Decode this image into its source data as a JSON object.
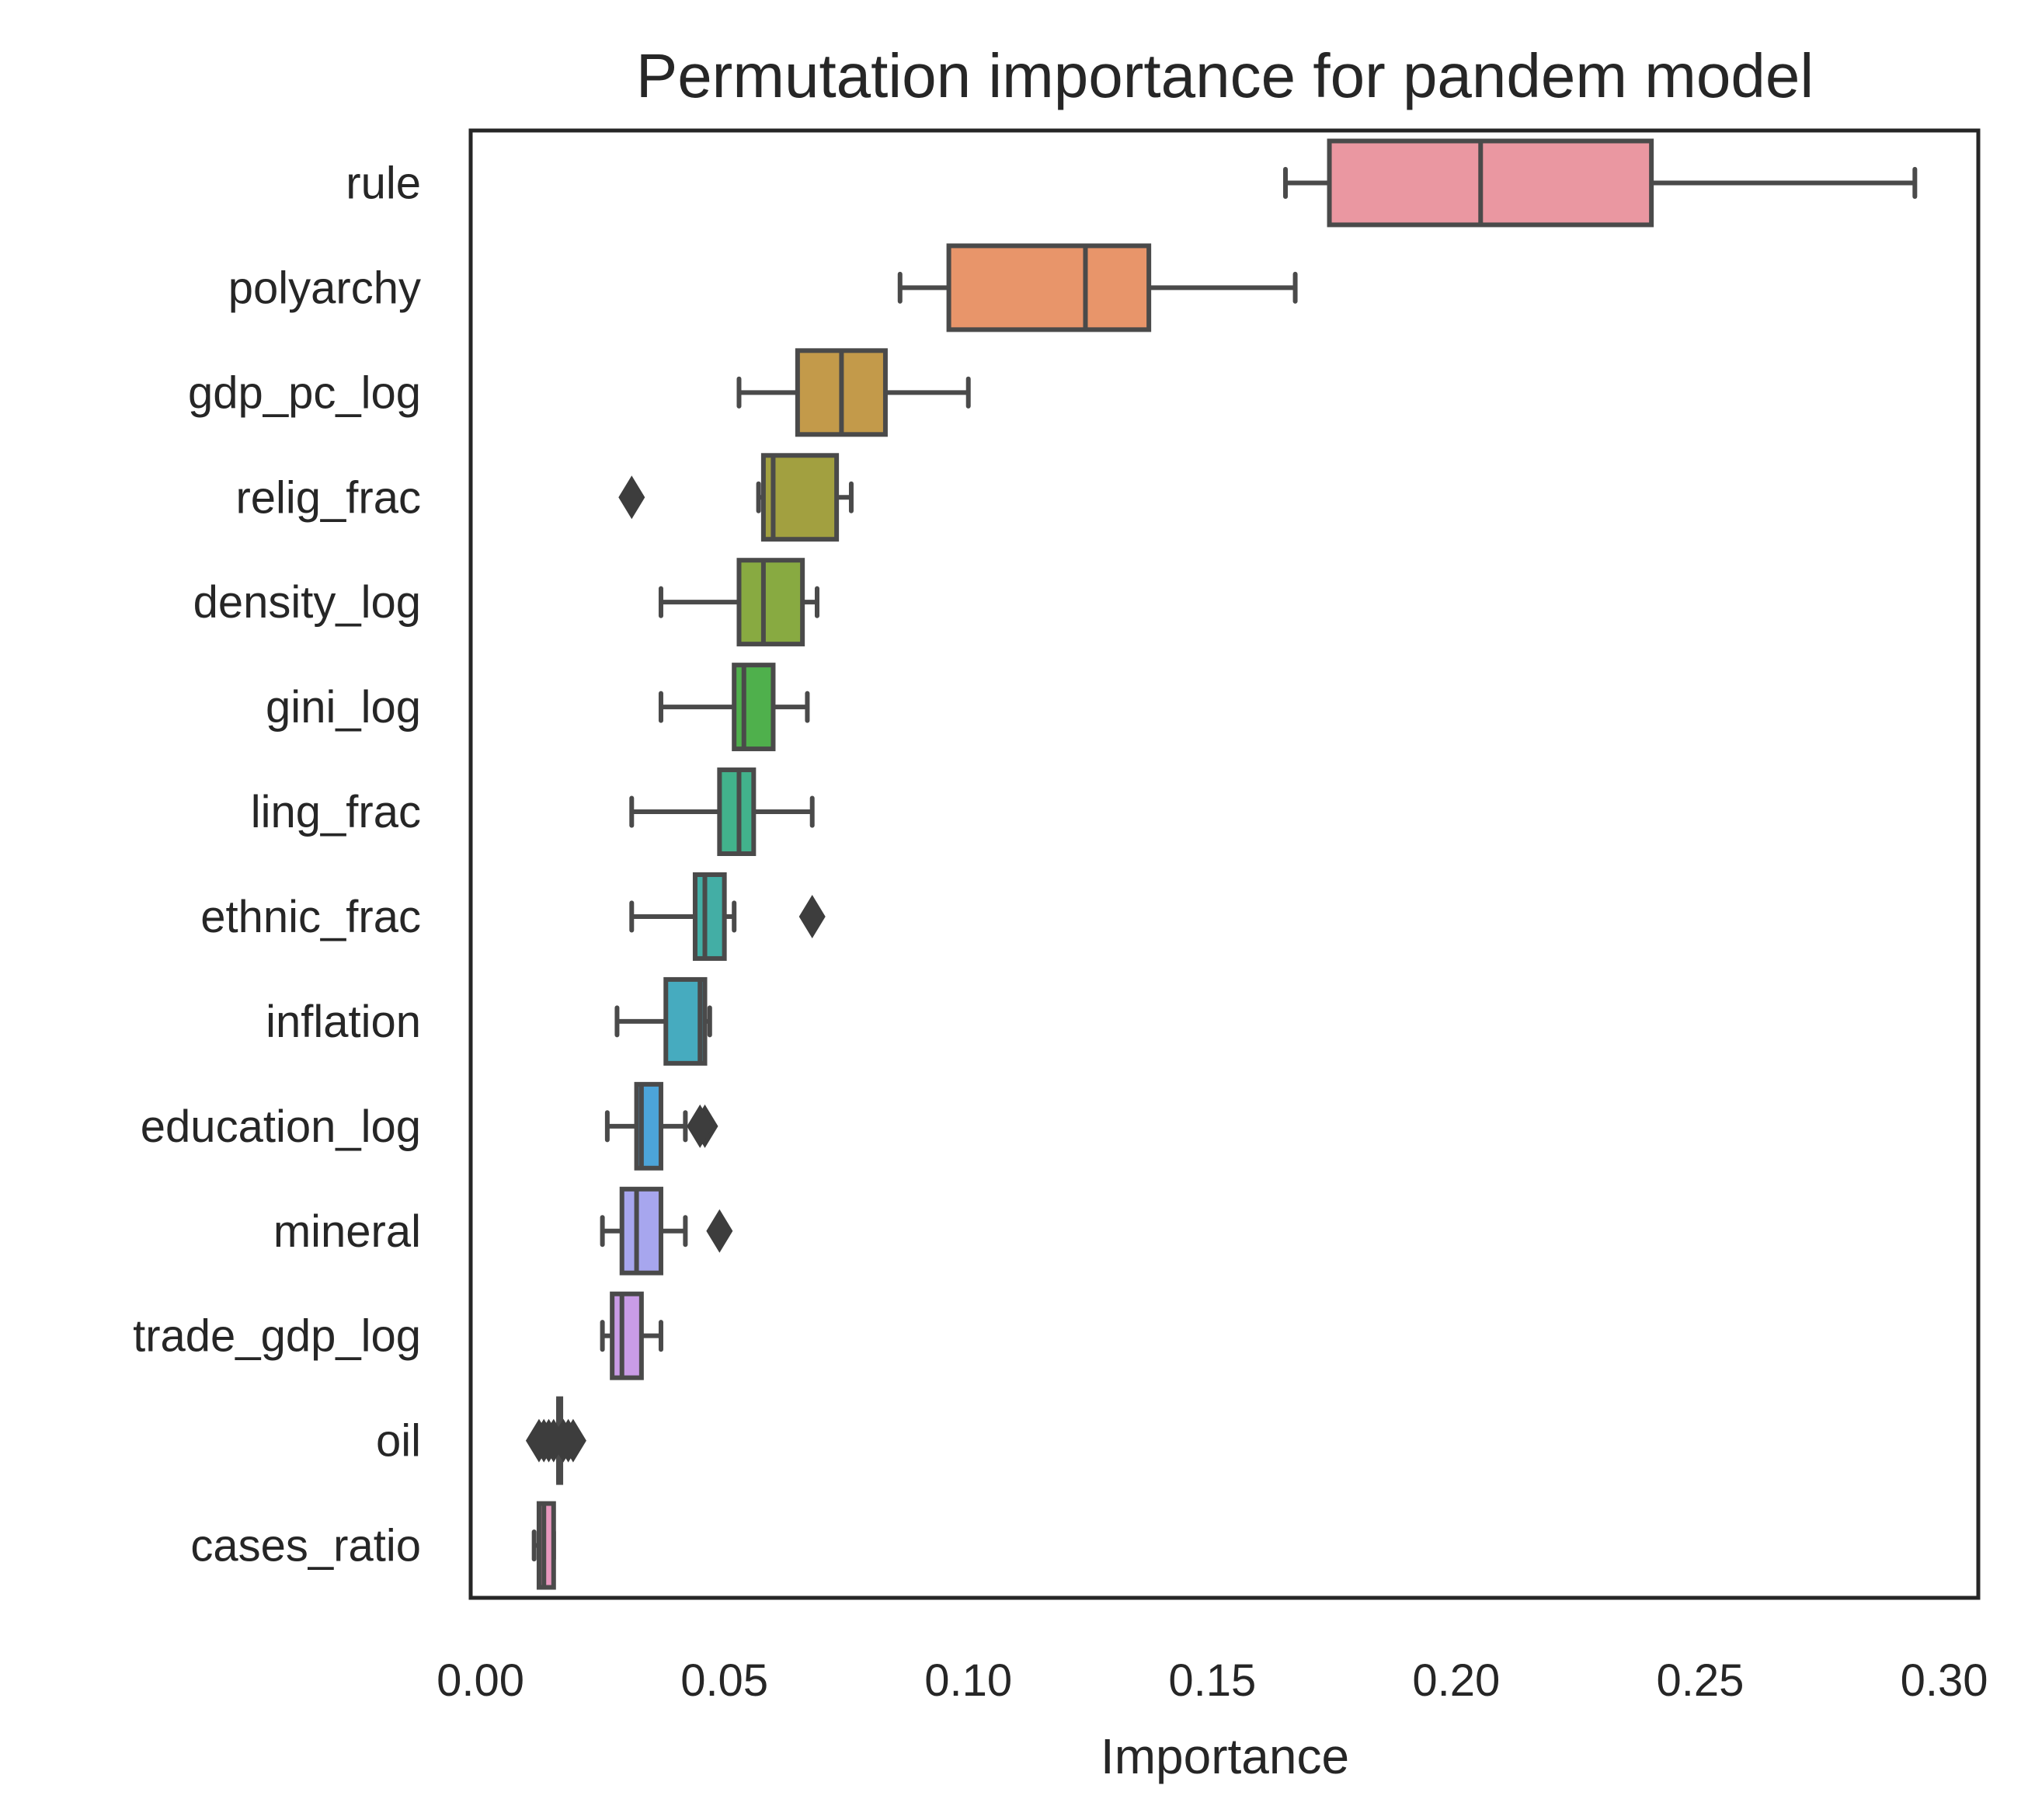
{
  "chart_data": {
    "type": "boxplot",
    "orientation": "horizontal",
    "title": "Permutation importance for pandem model",
    "xlabel": "Importance",
    "ylabel": "",
    "xlim": [
      -0.002,
      0.307
    ],
    "xticks": [
      0.0,
      0.05,
      0.1,
      0.15,
      0.2,
      0.25,
      0.3
    ],
    "xtick_labels": [
      "0.00",
      "0.05",
      "0.10",
      "0.15",
      "0.20",
      "0.25",
      "0.30"
    ],
    "grid": false,
    "legend": "none",
    "series": [
      {
        "name": "rule",
        "color": "#EA97A1",
        "min": 0.165,
        "q1": 0.174,
        "median": 0.205,
        "q3": 0.24,
        "max": 0.294,
        "outliers": []
      },
      {
        "name": "polyarchy",
        "color": "#E8956A",
        "min": 0.086,
        "q1": 0.096,
        "median": 0.124,
        "q3": 0.137,
        "max": 0.167,
        "outliers": []
      },
      {
        "name": "gdp_pc_log",
        "color": "#C39A4A",
        "min": 0.053,
        "q1": 0.065,
        "median": 0.074,
        "q3": 0.083,
        "max": 0.1,
        "outliers": []
      },
      {
        "name": "relig_frac",
        "color": "#A2A040",
        "min": 0.057,
        "q1": 0.058,
        "median": 0.06,
        "q3": 0.073,
        "max": 0.076,
        "outliers": [
          0.031
        ]
      },
      {
        "name": "density_log",
        "color": "#88AA41",
        "min": 0.037,
        "q1": 0.053,
        "median": 0.058,
        "q3": 0.066,
        "max": 0.069,
        "outliers": []
      },
      {
        "name": "gini_log",
        "color": "#4FB04C",
        "min": 0.037,
        "q1": 0.052,
        "median": 0.054,
        "q3": 0.06,
        "max": 0.067,
        "outliers": []
      },
      {
        "name": "ling_frac",
        "color": "#42B28C",
        "min": 0.031,
        "q1": 0.049,
        "median": 0.053,
        "q3": 0.056,
        "max": 0.068,
        "outliers": []
      },
      {
        "name": "ethnic_frac",
        "color": "#43AEA5",
        "min": 0.031,
        "q1": 0.044,
        "median": 0.046,
        "q3": 0.05,
        "max": 0.052,
        "outliers": [
          0.068
        ]
      },
      {
        "name": "inflation",
        "color": "#46ABBF",
        "min": 0.028,
        "q1": 0.038,
        "median": 0.045,
        "q3": 0.046,
        "max": 0.047,
        "outliers": []
      },
      {
        "name": "education_log",
        "color": "#4CA4D9",
        "min": 0.026,
        "q1": 0.032,
        "median": 0.033,
        "q3": 0.037,
        "max": 0.042,
        "outliers": [
          0.046,
          0.045
        ]
      },
      {
        "name": "mineral",
        "color": "#A7A6EE",
        "min": 0.025,
        "q1": 0.029,
        "median": 0.032,
        "q3": 0.037,
        "max": 0.042,
        "outliers": [
          0.049
        ]
      },
      {
        "name": "trade_gdp_log",
        "color": "#C99CE6",
        "min": 0.025,
        "q1": 0.027,
        "median": 0.029,
        "q3": 0.033,
        "max": 0.037,
        "outliers": []
      },
      {
        "name": "oil",
        "color": "#E08ED3",
        "min": 0.016,
        "q1": 0.016,
        "median": 0.016,
        "q3": 0.016,
        "max": 0.016,
        "outliers": [
          0.012,
          0.013,
          0.014,
          0.015,
          0.017,
          0.018,
          0.019
        ]
      },
      {
        "name": "cases_ratio",
        "color": "#E897BE",
        "min": 0.011,
        "q1": 0.012,
        "median": 0.013,
        "q3": 0.015,
        "max": 0.015,
        "outliers": []
      }
    ]
  }
}
